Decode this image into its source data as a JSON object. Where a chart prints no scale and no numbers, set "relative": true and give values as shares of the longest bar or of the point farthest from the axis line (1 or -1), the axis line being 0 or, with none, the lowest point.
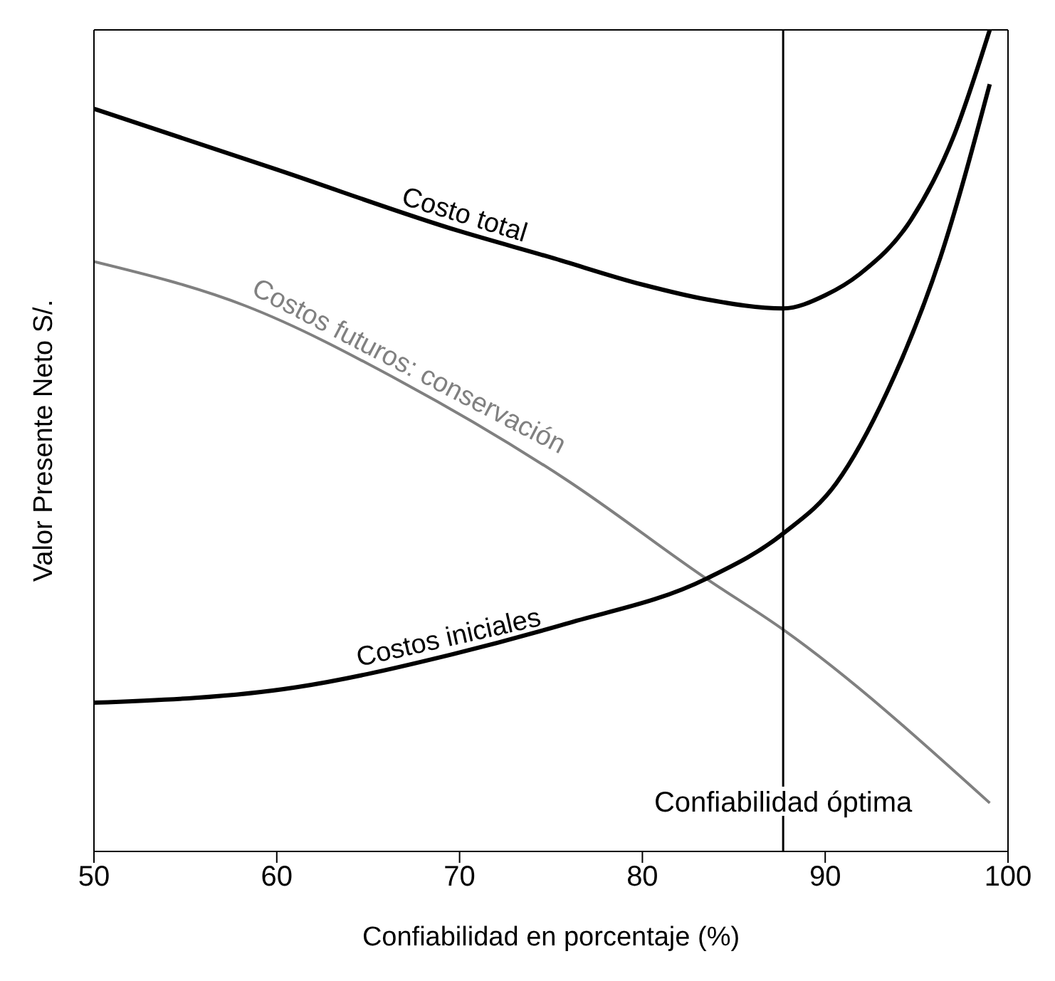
{
  "chart_data": {
    "type": "line",
    "relative": true,
    "xlabel": "Confiabilidad en porcentaje (%)",
    "ylabel": "Valor Presente Neto S/.",
    "xlim": [
      50,
      100
    ],
    "xticks": [
      50,
      60,
      70,
      80,
      90,
      100
    ],
    "marker": "none",
    "line_style": "solid",
    "series": [
      {
        "name": "Costo total",
        "color": "#000000",
        "x": [
          50,
          60,
          70,
          75,
          80,
          83.5,
          87.7,
          90,
          91.9,
          94.7,
          97,
          99
        ],
        "values": [
          0.904,
          0.83,
          0.755,
          0.723,
          0.69,
          0.672,
          0.661,
          0.677,
          0.703,
          0.769,
          0.869,
          1.0
        ]
      },
      {
        "name": "Costos futuros: conservación",
        "color": "#808080",
        "x": [
          50,
          58.3,
          66.8,
          75.8,
          83.5,
          87.7,
          99
        ],
        "values": [
          0.718,
          0.664,
          0.572,
          0.453,
          0.332,
          0.27,
          0.059
        ]
      },
      {
        "name": "Costos iniciales",
        "color": "#000000",
        "x": [
          50,
          61.1,
          69.6,
          75.8,
          83.5,
          87.7,
          90.6,
          93.4,
          96.3,
          99
        ],
        "values": [
          0.181,
          0.2,
          0.24,
          0.277,
          0.332,
          0.387,
          0.448,
          0.56,
          0.723,
          0.934
        ]
      }
    ],
    "ref_lines": [
      {
        "axis": "x",
        "value": 87.7,
        "label": "Confiabilidad óptima",
        "color": "#000000"
      }
    ]
  }
}
